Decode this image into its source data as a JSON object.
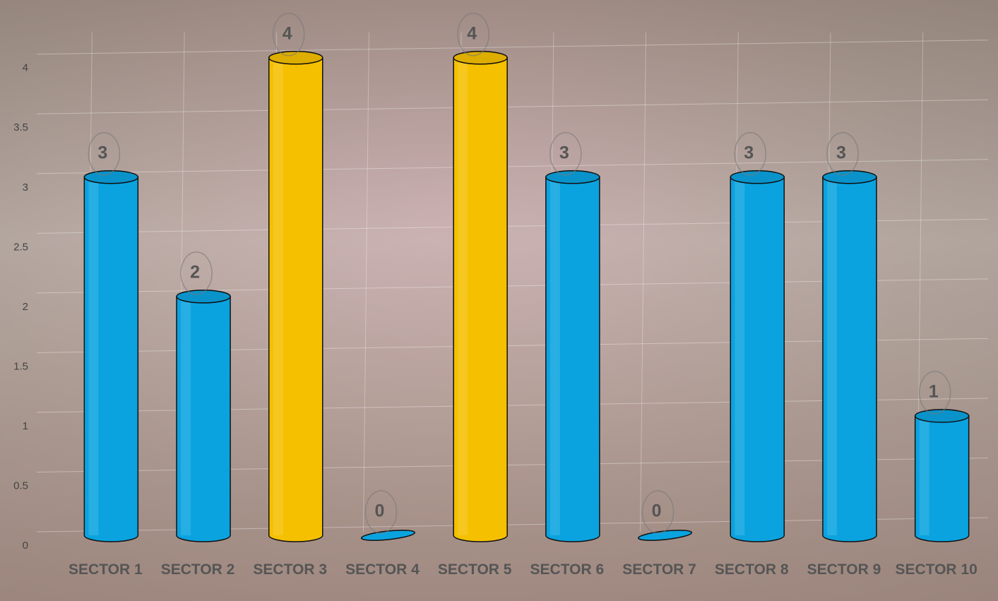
{
  "chart_data": {
    "type": "bar",
    "categories": [
      "SECTOR 1",
      "SECTOR 2",
      "SECTOR 3",
      "SECTOR 4",
      "SECTOR 5",
      "SECTOR 6",
      "SECTOR 7",
      "SECTOR 8",
      "SECTOR 9",
      "SECTOR 10"
    ],
    "values": [
      3,
      2,
      4,
      0,
      4,
      3,
      0,
      3,
      3,
      1
    ],
    "colors": [
      "#0aa3e0",
      "#0aa3e0",
      "#f5c000",
      "#0aa3e0",
      "#f5c000",
      "#0aa3e0",
      "#0aa3e0",
      "#0aa3e0",
      "#0aa3e0",
      "#0aa3e0"
    ],
    "ylim": [
      0,
      4.3
    ],
    "yticks": [
      0,
      0.5,
      1,
      1.5,
      2,
      2.5,
      3,
      3.5,
      4
    ],
    "grid": true
  }
}
